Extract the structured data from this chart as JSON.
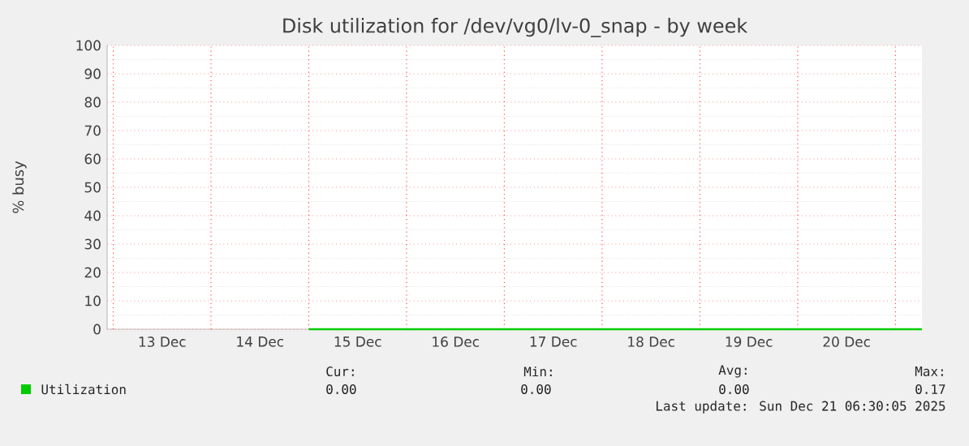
{
  "chart_data": {
    "type": "line",
    "title": "Disk utilization for /dev/vg0/lv-0_snap - by week",
    "ylabel": "% busy",
    "xlim": [
      "2025-12-12T22:30",
      "2025-12-21T06:30"
    ],
    "ylim": [
      0,
      100
    ],
    "yticks": [
      0,
      10,
      20,
      30,
      40,
      50,
      60,
      70,
      80,
      90,
      100
    ],
    "xticks": [
      {
        "value": "2025-12-13T00:00",
        "label": null
      },
      {
        "value": "2025-12-13T12:00",
        "label": "13 Dec"
      },
      {
        "value": "2025-12-14T00:00",
        "label": null
      },
      {
        "value": "2025-12-14T12:00",
        "label": "14 Dec"
      },
      {
        "value": "2025-12-15T00:00",
        "label": null
      },
      {
        "value": "2025-12-15T12:00",
        "label": "15 Dec"
      },
      {
        "value": "2025-12-16T00:00",
        "label": null
      },
      {
        "value": "2025-12-16T12:00",
        "label": "16 Dec"
      },
      {
        "value": "2025-12-17T00:00",
        "label": null
      },
      {
        "value": "2025-12-17T12:00",
        "label": "17 Dec"
      },
      {
        "value": "2025-12-18T00:00",
        "label": null
      },
      {
        "value": "2025-12-18T12:00",
        "label": "18 Dec"
      },
      {
        "value": "2025-12-19T00:00",
        "label": null
      },
      {
        "value": "2025-12-19T12:00",
        "label": "19 Dec"
      },
      {
        "value": "2025-12-20T00:00",
        "label": null
      },
      {
        "value": "2025-12-20T12:00",
        "label": "20 Dec"
      },
      {
        "value": "2025-12-21T00:00",
        "label": null
      }
    ],
    "grid": true,
    "legend": "bottom",
    "series": [
      {
        "name": "Utilization",
        "color": "#00cc00",
        "x": [
          "2025-12-15T00:00",
          "2025-12-16T00:00",
          "2025-12-17T00:00",
          "2025-12-18T00:00",
          "2025-12-19T00:00",
          "2025-12-20T00:00",
          "2025-12-21T00:00",
          "2025-12-21T06:30"
        ],
        "values": [
          0,
          0,
          0,
          0,
          0,
          0,
          0,
          0
        ]
      }
    ],
    "annotations": [
      "Cur:",
      "Min:",
      "Avg:",
      "Max:",
      "0.00",
      "0.00",
      "0.00",
      "0.17",
      "Last update: Sun Dec 21 06:30:05 2025"
    ]
  }
}
